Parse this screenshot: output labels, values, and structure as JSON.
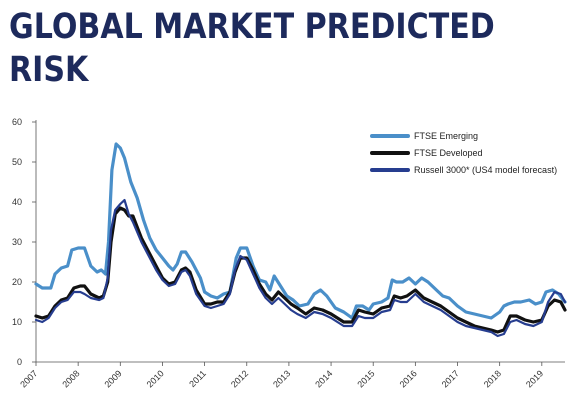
{
  "title_line1": "GLOBAL MARKET PREDICTED",
  "title_line2": "RISK",
  "chart_data": {
    "type": "line",
    "title": "GLOBAL MARKET PREDICTED RISK",
    "xlabel": "",
    "ylabel": "",
    "xlim": [
      2007.0,
      2019.55
    ],
    "ylim": [
      0,
      60
    ],
    "yticks": [
      0,
      10,
      20,
      30,
      40,
      50,
      60
    ],
    "xticks": [
      "2007",
      "2008",
      "2009",
      "2010",
      "2011",
      "2012",
      "2013",
      "2014",
      "2015",
      "2016",
      "2017",
      "2018",
      "2019"
    ],
    "grid": false,
    "legend_position": "top-right",
    "series": [
      {
        "name": "FTSE Emerging",
        "color": "#4a8fc9",
        "x": [
          2007.0,
          2007.15,
          2007.35,
          2007.45,
          2007.6,
          2007.75,
          2007.85,
          2008.0,
          2008.15,
          2008.3,
          2008.45,
          2008.55,
          2008.65,
          2008.72,
          2008.8,
          2008.9,
          2009.0,
          2009.1,
          2009.25,
          2009.4,
          2009.55,
          2009.7,
          2009.85,
          2010.0,
          2010.15,
          2010.25,
          2010.35,
          2010.45,
          2010.55,
          2010.7,
          2010.9,
          2011.0,
          2011.15,
          2011.3,
          2011.45,
          2011.6,
          2011.75,
          2011.85,
          2012.0,
          2012.15,
          2012.3,
          2012.45,
          2012.55,
          2012.65,
          2012.8,
          2012.95,
          2013.1,
          2013.25,
          2013.45,
          2013.6,
          2013.75,
          2013.9,
          2014.1,
          2014.3,
          2014.5,
          2014.6,
          2014.75,
          2014.9,
          2015.0,
          2015.2,
          2015.35,
          2015.45,
          2015.55,
          2015.7,
          2015.85,
          2016.0,
          2016.15,
          2016.3,
          2016.5,
          2016.65,
          2016.8,
          2017.0,
          2017.2,
          2017.4,
          2017.6,
          2017.8,
          2018.0,
          2018.1,
          2018.2,
          2018.35,
          2018.5,
          2018.7,
          2018.85,
          2019.0,
          2019.1,
          2019.25,
          2019.4,
          2019.55
        ],
        "y": [
          19.5,
          18.5,
          18.5,
          22.0,
          23.5,
          24.0,
          28.0,
          28.5,
          28.5,
          24.0,
          22.5,
          23.0,
          22.0,
          30.0,
          48.0,
          54.5,
          53.5,
          51.0,
          45.0,
          41.0,
          35.5,
          31.0,
          28.0,
          26.0,
          24.0,
          23.0,
          24.5,
          27.5,
          27.5,
          25.0,
          21.0,
          17.5,
          16.5,
          16.0,
          17.0,
          17.5,
          26.0,
          28.5,
          28.5,
          24.0,
          20.5,
          20.0,
          18.0,
          21.5,
          19.0,
          16.5,
          15.5,
          14.0,
          14.5,
          17.0,
          18.0,
          16.5,
          13.5,
          12.5,
          11.0,
          14.0,
          14.0,
          13.0,
          14.5,
          15.0,
          16.0,
          20.5,
          20.0,
          20.0,
          21.0,
          19.5,
          21.0,
          20.0,
          18.0,
          16.5,
          16.0,
          14.0,
          12.5,
          12.0,
          11.5,
          11.0,
          12.5,
          14.0,
          14.5,
          15.0,
          15.0,
          15.5,
          14.5,
          15.0,
          17.5,
          18.0,
          17.0,
          15.0
        ]
      },
      {
        "name": "FTSE Developed",
        "color": "#111111",
        "x": [
          2007.0,
          2007.15,
          2007.3,
          2007.45,
          2007.6,
          2007.75,
          2007.9,
          2008.05,
          2008.15,
          2008.3,
          2008.5,
          2008.6,
          2008.7,
          2008.78,
          2008.88,
          2009.0,
          2009.1,
          2009.2,
          2009.3,
          2009.5,
          2009.7,
          2009.85,
          2010.0,
          2010.15,
          2010.3,
          2010.45,
          2010.55,
          2010.65,
          2010.8,
          2011.0,
          2011.15,
          2011.3,
          2011.45,
          2011.6,
          2011.72,
          2011.85,
          2012.0,
          2012.15,
          2012.3,
          2012.45,
          2012.6,
          2012.75,
          2012.9,
          2013.05,
          2013.2,
          2013.4,
          2013.6,
          2013.8,
          2014.0,
          2014.15,
          2014.3,
          2014.5,
          2014.65,
          2014.8,
          2015.0,
          2015.2,
          2015.4,
          2015.5,
          2015.65,
          2015.8,
          2016.0,
          2016.2,
          2016.4,
          2016.6,
          2016.8,
          2017.0,
          2017.2,
          2017.4,
          2017.6,
          2017.8,
          2017.95,
          2018.1,
          2018.25,
          2018.4,
          2018.6,
          2018.8,
          2019.0,
          2019.15,
          2019.3,
          2019.45,
          2019.55
        ],
        "y": [
          11.5,
          11.0,
          11.5,
          14.0,
          15.5,
          16.0,
          18.5,
          19.0,
          19.0,
          17.0,
          16.0,
          16.5,
          20.0,
          30.0,
          37.0,
          38.5,
          38.0,
          36.5,
          36.5,
          31.0,
          27.0,
          24.0,
          21.0,
          19.5,
          20.0,
          23.0,
          23.5,
          22.5,
          18.0,
          14.5,
          14.5,
          15.0,
          15.0,
          17.5,
          22.5,
          26.0,
          26.0,
          23.0,
          19.5,
          17.0,
          15.5,
          17.5,
          16.0,
          14.5,
          13.5,
          12.0,
          13.5,
          13.0,
          12.0,
          11.0,
          10.0,
          10.0,
          13.0,
          12.5,
          12.0,
          13.5,
          14.0,
          16.5,
          16.0,
          16.5,
          18.0,
          16.0,
          15.0,
          14.0,
          12.5,
          11.0,
          10.0,
          9.0,
          8.5,
          8.0,
          7.5,
          8.0,
          11.5,
          11.5,
          10.5,
          10.0,
          10.5,
          14.0,
          15.5,
          15.0,
          13.0
        ]
      },
      {
        "name": "Russell 3000* (US4 model forecast)",
        "color": "#263d8f",
        "x": [
          2007.0,
          2007.15,
          2007.3,
          2007.45,
          2007.6,
          2007.75,
          2007.9,
          2008.05,
          2008.15,
          2008.3,
          2008.5,
          2008.6,
          2008.7,
          2008.78,
          2008.88,
          2009.0,
          2009.1,
          2009.2,
          2009.3,
          2009.5,
          2009.7,
          2009.85,
          2010.0,
          2010.15,
          2010.3,
          2010.45,
          2010.55,
          2010.65,
          2010.8,
          2011.0,
          2011.15,
          2011.3,
          2011.45,
          2011.6,
          2011.72,
          2011.85,
          2012.0,
          2012.15,
          2012.3,
          2012.45,
          2012.6,
          2012.75,
          2012.9,
          2013.05,
          2013.2,
          2013.4,
          2013.6,
          2013.8,
          2014.0,
          2014.15,
          2014.3,
          2014.5,
          2014.65,
          2014.8,
          2015.0,
          2015.2,
          2015.4,
          2015.5,
          2015.65,
          2015.8,
          2016.0,
          2016.2,
          2016.4,
          2016.6,
          2016.8,
          2017.0,
          2017.2,
          2017.4,
          2017.6,
          2017.8,
          2017.95,
          2018.1,
          2018.25,
          2018.4,
          2018.6,
          2018.8,
          2019.0,
          2019.15,
          2019.3,
          2019.45,
          2019.55
        ],
        "y": [
          10.5,
          10.0,
          11.0,
          13.5,
          15.0,
          15.5,
          17.5,
          17.5,
          17.0,
          16.0,
          15.5,
          16.0,
          21.0,
          33.0,
          38.0,
          39.5,
          40.5,
          37.0,
          35.0,
          30.0,
          26.0,
          23.0,
          20.5,
          19.0,
          19.5,
          22.5,
          23.0,
          21.5,
          17.0,
          14.0,
          13.5,
          14.0,
          14.5,
          17.0,
          23.0,
          26.5,
          25.5,
          22.0,
          18.5,
          16.0,
          14.5,
          16.0,
          14.5,
          13.0,
          12.0,
          11.0,
          12.5,
          12.0,
          11.0,
          10.0,
          9.0,
          9.0,
          11.5,
          11.0,
          11.0,
          12.5,
          13.0,
          15.5,
          15.0,
          15.0,
          17.0,
          15.0,
          14.0,
          13.0,
          11.5,
          10.0,
          9.0,
          8.5,
          8.0,
          7.5,
          6.5,
          7.0,
          10.0,
          10.5,
          9.5,
          9.0,
          10.0,
          15.0,
          17.5,
          17.0,
          15.0
        ]
      }
    ]
  }
}
